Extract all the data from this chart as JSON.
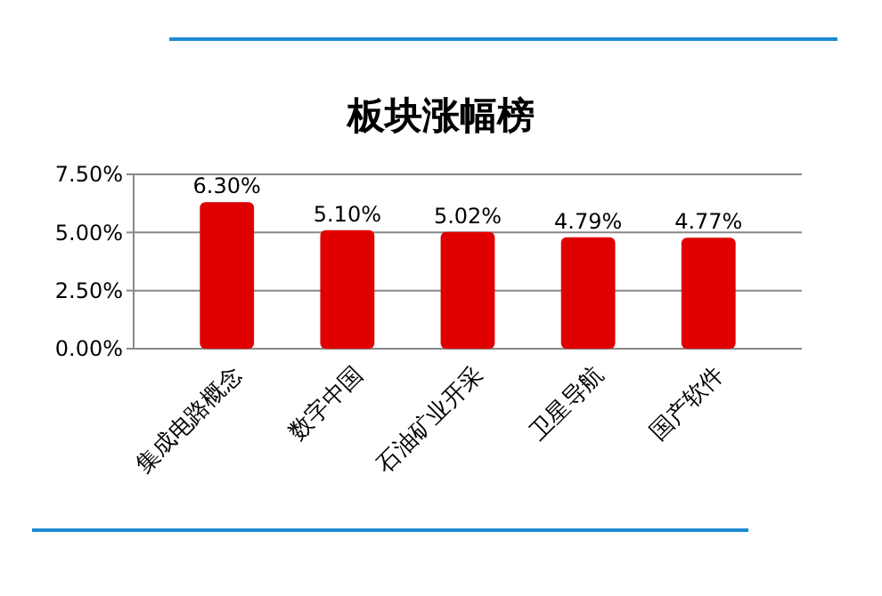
{
  "chart_data": {
    "type": "bar",
    "title": "板块涨幅榜",
    "categories": [
      "集成电路概念",
      "数字中国",
      "石油矿业开采",
      "卫星导航",
      "国产软件"
    ],
    "values": [
      6.3,
      5.1,
      5.02,
      4.79,
      4.77
    ],
    "value_labels": [
      "6.30%",
      "5.10%",
      "5.02%",
      "4.79%",
      "4.77%"
    ],
    "color": "#e00000",
    "ylim": [
      0,
      7.5
    ],
    "yticks": [
      {
        "value": 0,
        "label": "0.00%"
      },
      {
        "value": 2.5,
        "label": "2.50%"
      },
      {
        "value": 5,
        "label": "5.00%"
      },
      {
        "value": 7.5,
        "label": "7.50%"
      }
    ],
    "grid": "y"
  }
}
